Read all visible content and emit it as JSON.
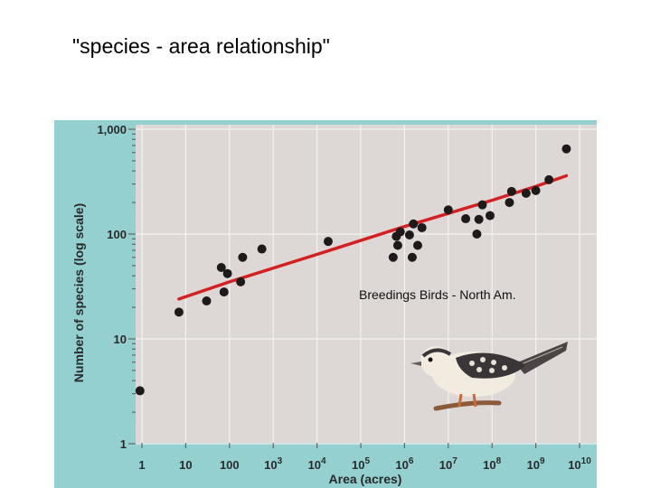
{
  "slide": {
    "title": "\"species - area relationship\"",
    "caption": "Breedings Birds - North Am."
  },
  "chart_data": {
    "type": "scatter",
    "title": "",
    "xlabel": "Area (acres)",
    "ylabel": "Number of species (log scale)",
    "x_scale": "log",
    "y_scale": "log",
    "xlim": [
      0.85,
      10000000000
    ],
    "ylim": [
      1,
      1000
    ],
    "x_ticks": [
      {
        "value": 1,
        "label": "1",
        "exp": ""
      },
      {
        "value": 10,
        "label": "10",
        "exp": ""
      },
      {
        "value": 100,
        "label": "100",
        "exp": ""
      },
      {
        "value": 1000,
        "label": "10",
        "exp": "3"
      },
      {
        "value": 10000,
        "label": "10",
        "exp": "4"
      },
      {
        "value": 100000,
        "label": "10",
        "exp": "5"
      },
      {
        "value": 1000000,
        "label": "10",
        "exp": "6"
      },
      {
        "value": 10000000,
        "label": "10",
        "exp": "7"
      },
      {
        "value": 100000000,
        "label": "10",
        "exp": "8"
      },
      {
        "value": 1000000000,
        "label": "10",
        "exp": "9"
      },
      {
        "value": 10000000000,
        "label": "10",
        "exp": "10"
      }
    ],
    "y_ticks": [
      {
        "value": 1,
        "label": "1"
      },
      {
        "value": 10,
        "label": "10"
      },
      {
        "value": 100,
        "label": "100"
      },
      {
        "value": 1000,
        "label": "1,000"
      }
    ],
    "grid": true,
    "series": [
      {
        "points": [
          [
            0.9,
            3.2
          ],
          [
            7,
            18
          ],
          [
            30,
            23
          ],
          [
            65,
            48
          ],
          [
            75,
            28
          ],
          [
            90,
            42
          ],
          [
            180,
            35
          ],
          [
            200,
            60
          ],
          [
            550,
            72
          ],
          [
            18000,
            85
          ],
          [
            550000,
            60
          ],
          [
            650000,
            95
          ],
          [
            700000,
            78
          ],
          [
            800000,
            105
          ],
          [
            1300000,
            98
          ],
          [
            1500000,
            60
          ],
          [
            1600000,
            125
          ],
          [
            2000000,
            78
          ],
          [
            2500000,
            115
          ],
          [
            10000000,
            170
          ],
          [
            25000000,
            140
          ],
          [
            45000000,
            100
          ],
          [
            50000000,
            138
          ],
          [
            60000000,
            190
          ],
          [
            90000000,
            150
          ],
          [
            250000000,
            200
          ],
          [
            280000000,
            255
          ],
          [
            600000000,
            245
          ],
          [
            1000000000,
            260
          ],
          [
            2000000000,
            330
          ],
          [
            5000000000,
            650
          ]
        ]
      }
    ],
    "fit_line": {
      "color": "#d42020",
      "points": [
        [
          7,
          24
        ],
        [
          100,
          35
        ],
        [
          10000,
          64
        ],
        [
          1000000,
          118
        ],
        [
          100000000,
          210
        ],
        [
          1000000000,
          285
        ],
        [
          5000000000,
          360
        ]
      ]
    },
    "colors": {
      "background": "#93d0cf",
      "plot_area": "#ddd8d5",
      "point": "#1f1a1a",
      "text": "#2a2a2a"
    }
  }
}
